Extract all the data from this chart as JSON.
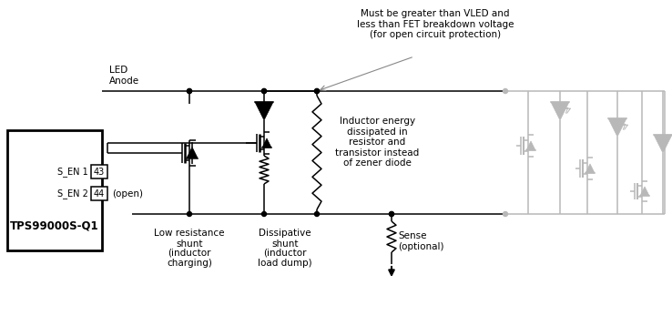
{
  "bg_color": "#ffffff",
  "black": "#000000",
  "gray": "#b8b8b8",
  "annotation_top": "Must be greater than VLED and\nless than FET breakdown voltage\n(for open circuit protection)",
  "label_led": "LED\nAnode",
  "label_s_en1": "S_EN 1",
  "label_43": "43",
  "label_s_en2": "S_EN 2",
  "label_44": "44",
  "label_open": "(open)",
  "label_tps": "TPS99000S-Q1",
  "label_low_res": "Low resistance\nshunt",
  "label_inductor_charging": "(inductor\ncharging)",
  "label_dissipative": "Dissipative\nshunt",
  "label_inductor_load": "(inductor\nload dump)",
  "label_inductor_energy": "Inductor energy\ndissipated in\nresistor and\ntransistor instead\nof zener diode",
  "label_sense": "Sense\n(optional)"
}
